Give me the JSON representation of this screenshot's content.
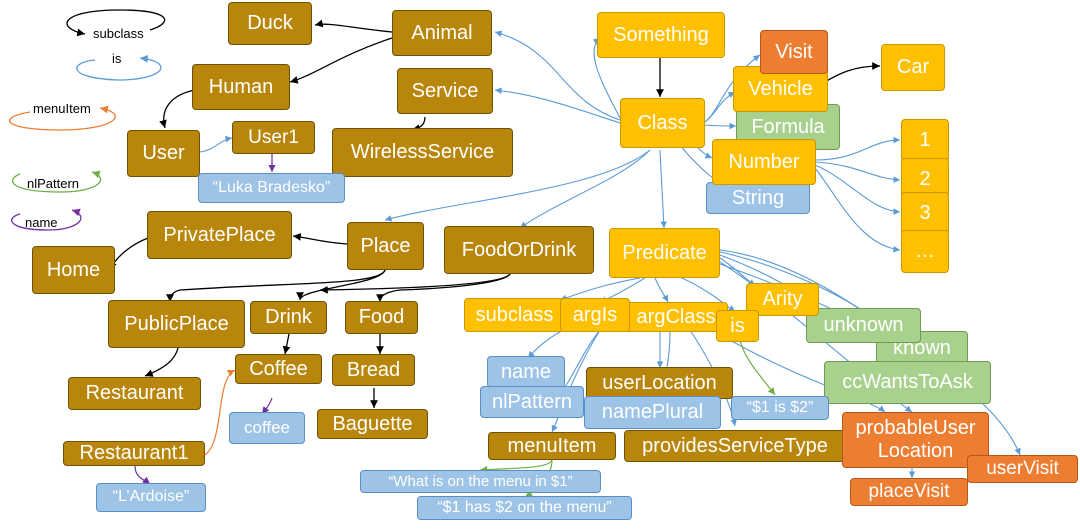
{
  "legend": {
    "subclass": "subclass",
    "is": "is",
    "menuItem": "menuItem",
    "nlPattern": "nlPattern",
    "name": "name"
  },
  "nodes": {
    "duck": "Duck",
    "animal": "Animal",
    "human": "Human",
    "service": "Service",
    "user": "User",
    "user1": "User1",
    "wirelessService": "WirelessService",
    "user1Name": "“Luka Bradesko”",
    "privatePlace": "PrivatePlace",
    "place": "Place",
    "foodOrDrink": "FoodOrDrink",
    "home": "Home",
    "publicPlace": "PublicPlace",
    "drink": "Drink",
    "food": "Food",
    "restaurant": "Restaurant",
    "coffee": "Coffee",
    "bread": "Bread",
    "coffeeName": "coffee",
    "baguette": "Baguette",
    "restaurant1": "Restaurant1",
    "restaurant1Name": "“L’Ardoise”",
    "something": "Something",
    "visit": "Visit",
    "car": "Car",
    "vehicle": "Vehicle",
    "class": "Class",
    "formula": "Formula",
    "number": "Number",
    "string": "String",
    "n1": "1",
    "n2": "2",
    "n3": "3",
    "nEllipsis": "…",
    "predicate": "Predicate",
    "arity": "Arity",
    "subclass": "subclass",
    "argIs": "argIs",
    "argClass": "argClass",
    "is": "is",
    "unknown": "unknown",
    "known": "known",
    "name": "name",
    "userLocation": "userLocation",
    "nlPattern": "nlPattern",
    "namePlural": "namePlural",
    "isPattern": "“$1 is $2”",
    "ccWantsToAsk": "ccWantsToAsk",
    "menuItem": "menuItem",
    "providesServiceType": "providesServiceType",
    "probableUserLocation": "probableUser Location",
    "userVisit": "userVisit",
    "menuPattern1": "“What is on the menu in $1”",
    "menuPattern2": "“$1 has $2 on the menu”",
    "placeVisit": "placeVisit"
  },
  "colors": {
    "subclass_arrow": "#000000",
    "is_arrow": "#5b9bd5",
    "menuItem_arrow": "#ed7d31",
    "nlPattern_arrow": "#70ad47",
    "name_arrow": "#7030a0",
    "olive": "#b8860b",
    "gold": "#ffc000",
    "green": "#a9d18e",
    "blue": "#9dc3e6",
    "orange": "#ed7d31"
  }
}
